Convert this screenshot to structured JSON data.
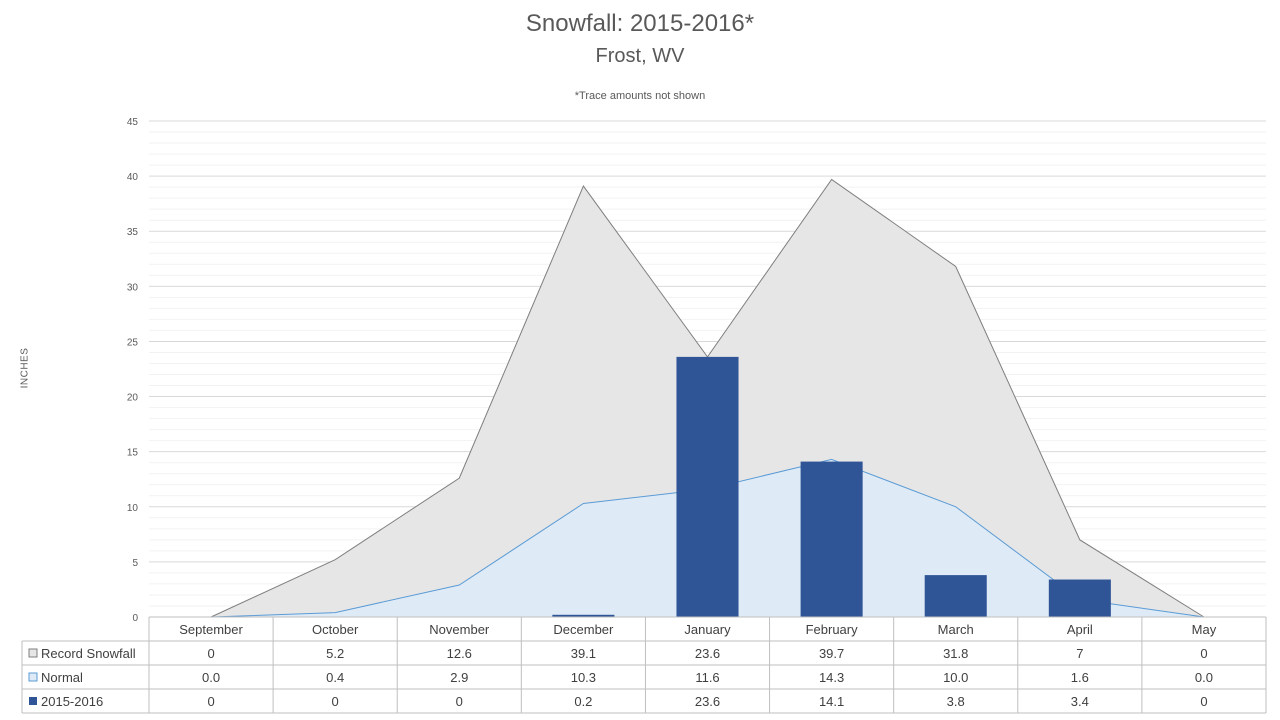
{
  "chart_data": {
    "type": "bar",
    "title": "Snowfall: 2015-2016*",
    "subtitle": "Frost, WV",
    "note": "*Trace amounts not shown",
    "ylabel": "INCHES",
    "ylim": [
      0,
      45
    ],
    "yticks": [
      0,
      5,
      10,
      15,
      20,
      25,
      30,
      35,
      40,
      45
    ],
    "grid": true,
    "legend_placement": "data table (left)",
    "categories": [
      "September",
      "October",
      "November",
      "December",
      "January",
      "February",
      "March",
      "April",
      "May"
    ],
    "series": [
      {
        "name": "Record Snowfall",
        "kind": "area",
        "color": "#e7e6e6",
        "stroke": "#7f7f7f",
        "values": [
          0,
          5.2,
          12.6,
          39.1,
          23.6,
          39.7,
          31.8,
          7,
          0
        ],
        "labels": [
          "0",
          "5.2",
          "12.6",
          "39.1",
          "23.6",
          "39.7",
          "31.8",
          "7",
          "0"
        ]
      },
      {
        "name": "Normal",
        "kind": "area",
        "color": "#deebf7",
        "stroke": "#5b9bd5",
        "values": [
          0.0,
          0.4,
          2.9,
          10.3,
          11.6,
          14.3,
          10.0,
          1.6,
          0.0
        ],
        "labels": [
          "0.0",
          "0.4",
          "2.9",
          "10.3",
          "11.6",
          "14.3",
          "10.0",
          "1.6",
          "0.0"
        ]
      },
      {
        "name": "2015-2016",
        "kind": "bar",
        "color": "#2f5597",
        "values": [
          0,
          0,
          0,
          0.2,
          23.6,
          14.1,
          3.8,
          3.4,
          0
        ],
        "labels": [
          "0",
          "0",
          "0",
          "0.2",
          "23.6",
          "14.1",
          "3.8",
          "3.4",
          "0"
        ]
      }
    ]
  }
}
